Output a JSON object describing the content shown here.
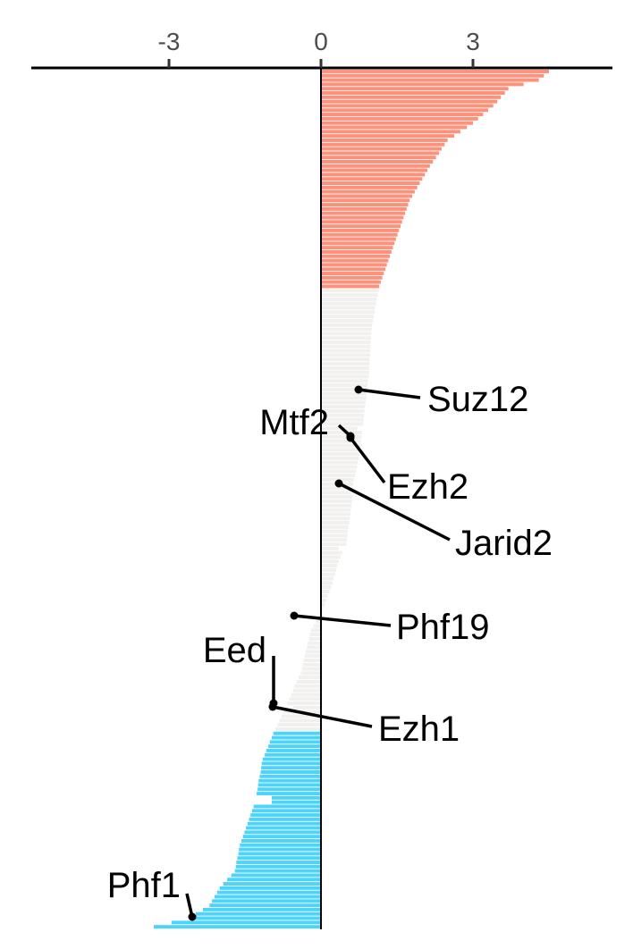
{
  "chart_data": {
    "type": "bar",
    "orientation": "horizontal",
    "title": "",
    "xlabel": "",
    "ylabel": "",
    "xlim": [
      -5.75,
      5.75
    ],
    "x_ticks": [
      -3,
      0,
      3
    ],
    "x_tick_labels": [
      "-3",
      "0",
      "3"
    ],
    "grid": false,
    "legend": "none",
    "n_bars": 200,
    "colors": {
      "positive": "#FF907A",
      "neutral": "#F1F0EE",
      "negative": "#4ED3FC",
      "axis": "#000000",
      "tick_text": "#4D4D4D"
    },
    "color_groups": [
      {
        "name": "positive",
        "from_rank": 1,
        "to_rank": 51
      },
      {
        "name": "neutral",
        "from_rank": 52,
        "to_rank": 154
      },
      {
        "name": "negative",
        "from_rank": 155,
        "to_rank": 200
      }
    ],
    "profile_knots": [
      [
        0,
        4.5
      ],
      [
        2,
        4.3
      ],
      [
        4,
        3.7
      ],
      [
        8,
        3.4
      ],
      [
        12,
        3.0
      ],
      [
        16,
        2.5
      ],
      [
        22,
        2.15
      ],
      [
        30,
        1.75
      ],
      [
        40,
        1.45
      ],
      [
        50,
        1.15
      ],
      [
        60,
        1.0
      ],
      [
        70,
        0.95
      ],
      [
        80,
        0.85
      ],
      [
        90,
        0.75
      ],
      [
        95,
        0.65
      ],
      [
        101,
        0.6
      ],
      [
        110,
        0.5
      ],
      [
        114,
        0.35
      ],
      [
        120,
        0.2
      ],
      [
        126,
        0.0
      ],
      [
        130,
        -0.2
      ],
      [
        140,
        -0.4
      ],
      [
        153,
        -0.9
      ],
      [
        160,
        -1.15
      ],
      [
        170,
        -1.3
      ],
      [
        180,
        -1.6
      ],
      [
        186,
        -1.7
      ],
      [
        190,
        -2.0
      ],
      [
        194,
        -2.2
      ],
      [
        197,
        -2.6
      ],
      [
        199,
        -3.3
      ]
    ],
    "highlighted_genes": [
      {
        "name": "Suz12",
        "rank": 84,
        "value": 0.72
      },
      {
        "name": "Mtf2",
        "rank": 98,
        "value": 0.6
      },
      {
        "name": "Ezh2",
        "rank": 99,
        "value": 0.58
      },
      {
        "name": "Jarid2",
        "rank": 112,
        "value": 0.35
      },
      {
        "name": "Phf19",
        "rank": 149,
        "value": -0.55
      },
      {
        "name": "Eed",
        "rank": 170,
        "value": -0.97
      },
      {
        "name": "Ezh1",
        "rank": 171,
        "value": -0.97
      },
      {
        "name": "Phf1",
        "rank": 198,
        "value": -2.5
      }
    ]
  }
}
